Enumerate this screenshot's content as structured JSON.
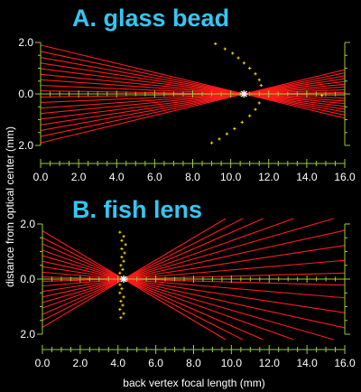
{
  "colors": {
    "background": "#000000",
    "title": "#35c6f2",
    "axis": "#9acd32",
    "ray": "#ff1a1a",
    "points": "#ffd700",
    "text": "#ffffff",
    "focus": "#ffffff"
  },
  "ylabel": "distance from optical center (mm)",
  "xlabel": "back vertex focal length (mm)",
  "chart_data": [
    {
      "type": "scatter",
      "title": "A. glass bead",
      "xlim": [
        0,
        16
      ],
      "ylim": [
        -2,
        2
      ],
      "x_ticks": [
        "0.0",
        "2.0",
        "4.0",
        "6.0",
        "8.0",
        "10.0",
        "12.0",
        "14.0",
        "16.0"
      ],
      "y_ticks": [
        "2.0",
        "0.0",
        "2.0"
      ],
      "focal_point": [
        10.7,
        0.0
      ],
      "ray_entry_heights": [
        1.9,
        1.65,
        1.42,
        1.2,
        0.98,
        0.76,
        0.55,
        0.33,
        0.12,
        -0.12,
        -0.33,
        -0.55,
        -0.76,
        -0.98,
        -1.2,
        -1.42,
        -1.65,
        -1.9
      ],
      "focal_points": [
        {
          "x": 9.2,
          "y": 1.95
        },
        {
          "x": 9.7,
          "y": 1.75
        },
        {
          "x": 10.1,
          "y": 1.58
        },
        {
          "x": 10.4,
          "y": 1.4
        },
        {
          "x": 10.7,
          "y": 1.2
        },
        {
          "x": 11.0,
          "y": 1.0
        },
        {
          "x": 11.3,
          "y": 0.78
        },
        {
          "x": 11.5,
          "y": 0.55
        },
        {
          "x": 11.6,
          "y": 0.33
        },
        {
          "x": 11.5,
          "y": -0.35
        },
        {
          "x": 11.3,
          "y": -0.6
        },
        {
          "x": 11.0,
          "y": -0.85
        },
        {
          "x": 10.6,
          "y": -1.1
        },
        {
          "x": 10.2,
          "y": -1.35
        },
        {
          "x": 9.8,
          "y": -1.55
        },
        {
          "x": 9.4,
          "y": -1.75
        },
        {
          "x": 9.0,
          "y": -1.9
        },
        {
          "x": 14.8,
          "y": -0.05
        }
      ]
    },
    {
      "type": "scatter",
      "title": "B. fish lens",
      "xlim": [
        0,
        16
      ],
      "ylim": [
        -2,
        2
      ],
      "x_ticks": [
        "0.0",
        "2.0",
        "4.0",
        "6.0",
        "8.0",
        "10.0",
        "12.0",
        "14.0",
        "16.0"
      ],
      "y_ticks": [
        "2.0",
        "0.0",
        "2.0"
      ],
      "focal_point": [
        4.3,
        0.0
      ],
      "ray_entry_heights": [
        1.75,
        1.5,
        1.28,
        1.05,
        0.85,
        0.65,
        0.45,
        0.25,
        0.08,
        -0.08,
        -0.25,
        -0.45,
        -0.65,
        -0.85,
        -1.05,
        -1.28,
        -1.5,
        -1.75
      ],
      "focal_points": [
        {
          "x": 4.1,
          "y": 1.7
        },
        {
          "x": 4.3,
          "y": 1.55
        },
        {
          "x": 4.2,
          "y": 1.4
        },
        {
          "x": 4.4,
          "y": 1.25
        },
        {
          "x": 4.2,
          "y": 1.1
        },
        {
          "x": 4.35,
          "y": 0.95
        },
        {
          "x": 4.2,
          "y": 0.8
        },
        {
          "x": 4.3,
          "y": 0.65
        },
        {
          "x": 4.15,
          "y": 0.5
        },
        {
          "x": 4.25,
          "y": 0.35
        },
        {
          "x": 4.1,
          "y": 0.22
        },
        {
          "x": 4.1,
          "y": -0.2
        },
        {
          "x": 4.2,
          "y": -0.35
        },
        {
          "x": 4.1,
          "y": -0.5
        },
        {
          "x": 4.3,
          "y": -0.65
        },
        {
          "x": 4.15,
          "y": -0.8
        },
        {
          "x": 4.25,
          "y": -0.95
        },
        {
          "x": 4.1,
          "y": -1.1
        },
        {
          "x": 4.3,
          "y": -1.25
        },
        {
          "x": 4.15,
          "y": -1.4
        }
      ]
    }
  ]
}
